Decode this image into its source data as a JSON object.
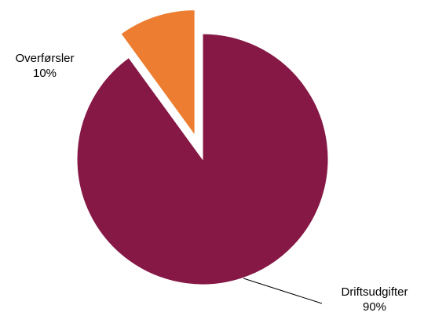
{
  "chart_data": {
    "type": "pie",
    "title": "",
    "exploded": "Overførsler",
    "legend": "none",
    "slices": [
      {
        "name": "Driftsudgifter",
        "value": 90,
        "label": "90%",
        "color": "#861846"
      },
      {
        "name": "Overførsler",
        "value": 10,
        "label": "10%",
        "color": "#ED7D31"
      }
    ]
  }
}
